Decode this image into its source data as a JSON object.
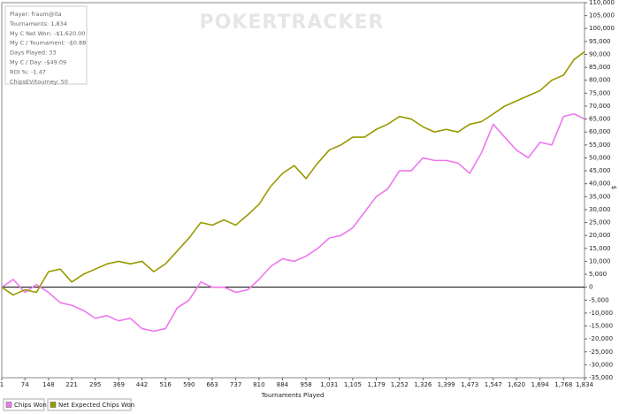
{
  "chart_data": {
    "type": "line",
    "watermark": "POKERTRACKER",
    "info": [
      "Player: fraum@ita",
      "Tournaments: 1,834",
      "My C Net Won: -$1,620.00",
      "My C / Tournament: -$0.88",
      "Days Played: 33",
      "My C / Day: -$49.09",
      "ROI %: -1.47",
      "ChipsEV/tourney: 50"
    ],
    "xlabel": "Tournaments Played",
    "ylabel": "$",
    "x": [
      1,
      37,
      74,
      110,
      148,
      185,
      221,
      258,
      295,
      332,
      369,
      405,
      442,
      479,
      516,
      553,
      590,
      627,
      663,
      700,
      737,
      775,
      810,
      847,
      884,
      921,
      958,
      995,
      1031,
      1068,
      1105,
      1142,
      1179,
      1215,
      1252,
      1289,
      1326,
      1362,
      1399,
      1436,
      1473,
      1510,
      1547,
      1583,
      1620,
      1657,
      1694,
      1731,
      1768,
      1801,
      1834
    ],
    "series": [
      {
        "name": "Chips Won",
        "color": "#ee77ee",
        "values": [
          0,
          3000,
          -2000,
          1000,
          -2000,
          -6000,
          -7000,
          -9000,
          -12000,
          -11000,
          -13000,
          -12000,
          -16000,
          -17000,
          -16000,
          -8000,
          -5000,
          2000,
          0,
          0,
          -2000,
          -1000,
          3000,
          8000,
          11000,
          10000,
          12000,
          15000,
          19000,
          20000,
          23000,
          29000,
          35000,
          38000,
          45000,
          45000,
          50000,
          49000,
          49000,
          48000,
          44000,
          52000,
          63000,
          58000,
          53000,
          50000,
          56000,
          55000,
          66000,
          67000,
          65000
        ]
      },
      {
        "name": "Net Expected Chips Won",
        "color": "#999900",
        "values": [
          0,
          -3000,
          -1000,
          -2000,
          6000,
          7000,
          2000,
          5000,
          7000,
          9000,
          10000,
          9000,
          10000,
          6000,
          9000,
          14000,
          19000,
          25000,
          24000,
          26000,
          24000,
          28000,
          32000,
          39000,
          44000,
          47000,
          42000,
          48000,
          53000,
          55000,
          58000,
          58000,
          61000,
          63000,
          66000,
          65000,
          62000,
          60000,
          61000,
          60000,
          63000,
          64000,
          67000,
          70000,
          72000,
          74000,
          76000,
          80000,
          82000,
          88000,
          91000
        ]
      }
    ],
    "xlim": [
      1,
      1834
    ],
    "xticks": [
      1,
      74,
      148,
      221,
      295,
      369,
      442,
      516,
      590,
      663,
      737,
      810,
      884,
      958,
      {
        "value": 1031,
        "label": "1,031"
      },
      {
        "value": 1105,
        "label": "1,105"
      },
      {
        "value": 1179,
        "label": "1,179"
      },
      {
        "value": 1252,
        "label": "1,252"
      },
      {
        "value": 1326,
        "label": "1,326"
      },
      {
        "value": 1399,
        "label": "1,399"
      },
      {
        "value": 1473,
        "label": "1,473"
      },
      {
        "value": 1547,
        "label": "1,547"
      },
      {
        "value": 1620,
        "label": "1,620"
      },
      {
        "value": 1694,
        "label": "1,694"
      },
      {
        "value": 1768,
        "label": "1,768"
      },
      {
        "value": 1834,
        "label": "1,834"
      }
    ],
    "ylim": [
      -35000,
      110000
    ],
    "yticks": [
      {
        "value": 110000,
        "label": "110,000"
      },
      {
        "value": 105000,
        "label": "105,000"
      },
      {
        "value": 100000,
        "label": "100,000"
      },
      {
        "value": 95000,
        "label": "95,000"
      },
      {
        "value": 90000,
        "label": "90,000"
      },
      {
        "value": 85000,
        "label": "85,000"
      },
      {
        "value": 80000,
        "label": "80,000"
      },
      {
        "value": 75000,
        "label": "75,000"
      },
      {
        "value": 70000,
        "label": "70,000"
      },
      {
        "value": 65000,
        "label": "65,000"
      },
      {
        "value": 60000,
        "label": "60,000"
      },
      {
        "value": 55000,
        "label": "55,000"
      },
      {
        "value": 50000,
        "label": "50,000"
      },
      {
        "value": 45000,
        "label": "45,000"
      },
      {
        "value": 40000,
        "label": "40,000"
      },
      {
        "value": 35000,
        "label": "35,000"
      },
      {
        "value": 30000,
        "label": "30,000"
      },
      {
        "value": 25000,
        "label": "25,000"
      },
      {
        "value": 20000,
        "label": "20,000"
      },
      {
        "value": 15000,
        "label": "15,000"
      },
      {
        "value": 10000,
        "label": "10,000"
      },
      {
        "value": 5000,
        "label": "5,000"
      },
      0,
      {
        "value": -5000,
        "label": "-5,000"
      },
      {
        "value": -10000,
        "label": "-10,000"
      },
      {
        "value": -15000,
        "label": "-15,000"
      },
      {
        "value": -20000,
        "label": "-20,000"
      },
      {
        "value": -25000,
        "label": "-25,000"
      },
      {
        "value": -30000,
        "label": "-30,000"
      },
      {
        "value": -35000,
        "label": "-35,000"
      }
    ]
  }
}
